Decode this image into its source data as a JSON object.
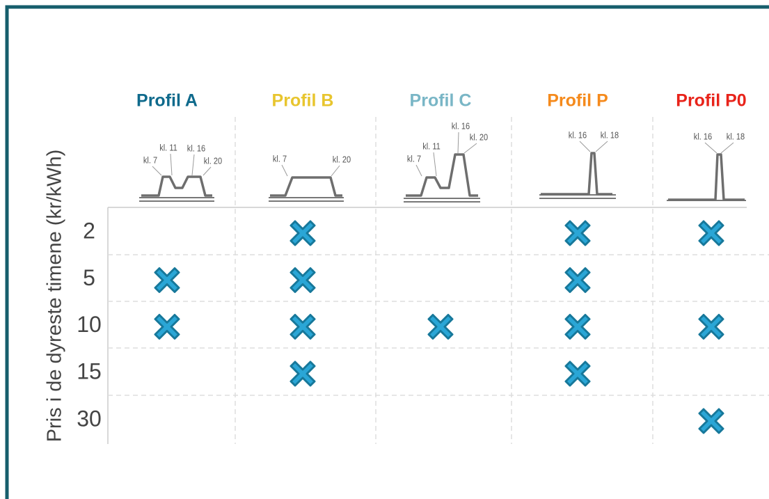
{
  "y_axis_label": "Pris i de dyreste timene (kr/kWh)",
  "columns": [
    {
      "name": "Profil A",
      "color": "#0f6a8c",
      "hour_labels": [
        "kl. 7",
        "kl. 11",
        "kl. 16",
        "kl. 20"
      ]
    },
    {
      "name": "Profil B",
      "color": "#e8c52e",
      "hour_labels": [
        "kl. 7",
        "kl. 20"
      ]
    },
    {
      "name": "Profil C",
      "color": "#79b6c6",
      "hour_labels": [
        "kl. 7",
        "kl. 11",
        "kl. 16",
        "kl. 20"
      ]
    },
    {
      "name": "Profil P",
      "color": "#f58a1c",
      "hour_labels": [
        "kl. 16",
        "kl. 18"
      ]
    },
    {
      "name": "Profil P0",
      "color": "#e8231a",
      "hour_labels": [
        "kl. 16",
        "kl. 18"
      ]
    }
  ],
  "rows": [
    {
      "label": "2",
      "checked": [
        false,
        true,
        false,
        true,
        true
      ]
    },
    {
      "label": "5",
      "checked": [
        true,
        true,
        false,
        true,
        false
      ]
    },
    {
      "label": "10",
      "checked": [
        true,
        true,
        true,
        true,
        true
      ]
    },
    {
      "label": "15",
      "checked": [
        false,
        true,
        false,
        true,
        false
      ]
    },
    {
      "label": "30",
      "checked": [
        false,
        false,
        false,
        false,
        true
      ]
    }
  ]
}
